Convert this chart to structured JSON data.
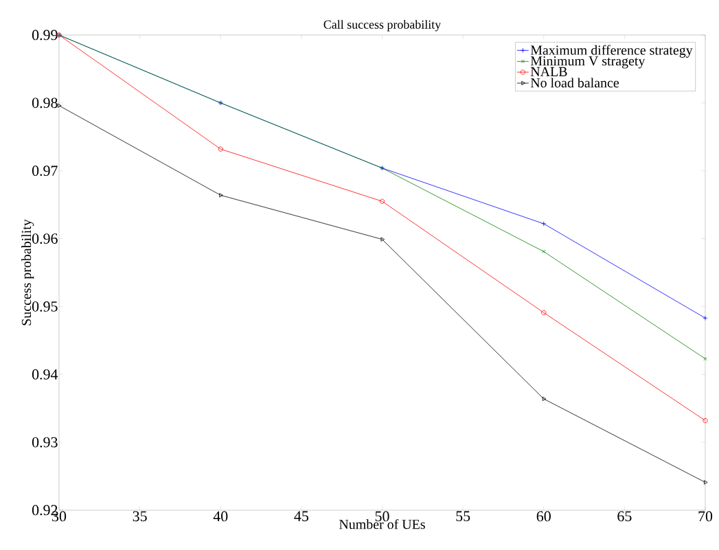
{
  "chart_data": {
    "type": "line",
    "title": "Call success probability",
    "xlabel": "Number of UEs",
    "ylabel": "Success probability",
    "x": [
      30,
      40,
      50,
      60,
      70
    ],
    "series": [
      {
        "name": "Maximum difference strategy",
        "color": "#0000ff",
        "marker": "cross",
        "values": [
          0.99,
          0.98,
          0.9704,
          0.9622,
          0.9483
        ]
      },
      {
        "name": "Minimum V stragety",
        "color": "#008000",
        "marker": "x",
        "values": [
          0.99,
          0.98,
          0.9704,
          0.9581,
          0.9423
        ]
      },
      {
        "name": "NALB",
        "color": "#ff0000",
        "marker": "circle",
        "values": [
          0.99,
          0.9732,
          0.9655,
          0.9491,
          0.9332
        ]
      },
      {
        "name": "No load balance",
        "color": "#000000",
        "marker": "triangle",
        "values": [
          0.9796,
          0.9664,
          0.9599,
          0.9364,
          0.9241
        ]
      }
    ],
    "xlim": [
      30,
      70
    ],
    "xticks": [
      30,
      35,
      40,
      45,
      50,
      55,
      60,
      65,
      70
    ],
    "ylim": [
      0.92,
      0.99
    ],
    "yticks": [
      0.92,
      0.93,
      0.94,
      0.95,
      0.96,
      0.97,
      0.98,
      0.99
    ],
    "grid": false,
    "legend": "top right",
    "line_style": "solid"
  }
}
